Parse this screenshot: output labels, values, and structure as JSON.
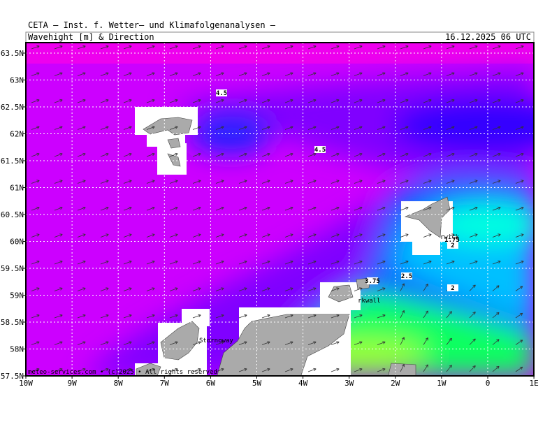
{
  "header": {
    "institute": "CETA – Inst. f. Wetter– und Klimafolgenanalysen –",
    "title": "Wavehight [m] & Direction",
    "date": "16.12.2025 06 UTC"
  },
  "lat_labels": [
    "63.5N",
    "63N",
    "62.5N",
    "62N",
    "61.5N",
    "61N",
    "60.5N",
    "60N",
    "59.5N",
    "59N",
    "58.5N",
    "58N",
    "57.5N"
  ],
  "lon_labels": [
    "10W",
    "9W",
    "8W",
    "7W",
    "6W",
    "5W",
    "4W",
    "3W",
    "2W",
    "1W",
    "0",
    "1E"
  ],
  "contour_labels": [
    "4.5",
    "4.5",
    "1.75",
    "2",
    "2.5",
    "2",
    "3.75"
  ],
  "places": [
    "rwick",
    "rkwall",
    "Stornoway"
  ],
  "footer": "meteo-services.com • (c)2025 • All rights reserved"
}
